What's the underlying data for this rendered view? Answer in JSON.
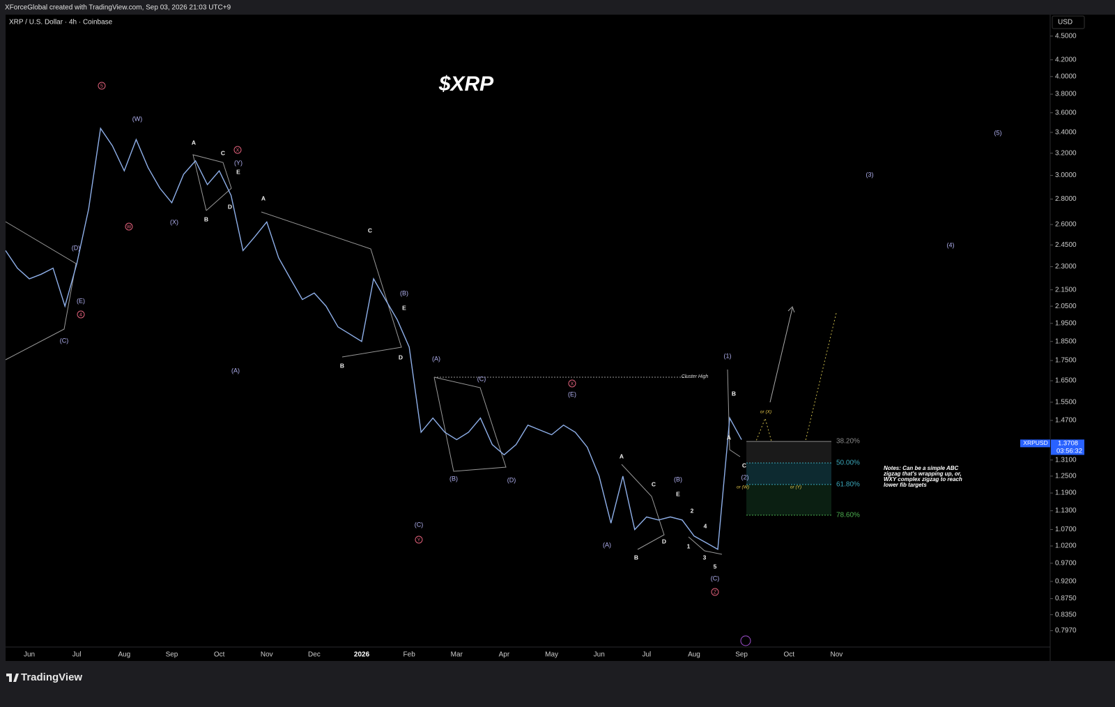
{
  "header": {
    "credit": "XForceGlobal created with TradingView.com, Sep 03, 2026 21:03 UTC+9",
    "brand": "TradingView"
  },
  "chart_data": {
    "type": "line",
    "symbol": "XRP / U.S. Dollar · 4h · Coinbase",
    "title": "$XRP",
    "currency": "USD",
    "log_scale": true,
    "categories": [
      null,
      null,
      "Jun",
      null,
      null,
      null,
      "Jul",
      null,
      null,
      null,
      "Aug",
      null,
      null,
      null,
      "Sep",
      null,
      null,
      null,
      "Oct",
      null,
      null,
      null,
      "Nov",
      null,
      null,
      null,
      "Dec",
      null,
      null,
      null,
      "2026",
      null,
      null,
      null,
      "Feb",
      null,
      null,
      null,
      "Mar",
      null,
      null,
      null,
      "Apr",
      null,
      null,
      null,
      "May",
      null,
      null,
      null,
      "Jun",
      null,
      null,
      null,
      "Jul",
      null,
      null,
      null,
      "Aug",
      null,
      null,
      null,
      "Sep",
      null,
      null,
      null,
      "Oct",
      null,
      null,
      null,
      "Nov",
      null,
      null,
      null,
      null,
      null,
      null,
      null,
      null,
      null,
      null,
      null,
      null,
      null,
      null,
      null,
      null,
      null
    ],
    "series": [
      {
        "name": "XRPUSD",
        "color": "#8fb0ea",
        "values": [
          2.41,
          2.29,
          2.22,
          2.25,
          2.29,
          2.05,
          2.32,
          2.72,
          3.44,
          3.27,
          3.04,
          3.33,
          3.07,
          2.89,
          2.77,
          3.01,
          3.13,
          2.92,
          3.04,
          2.83,
          2.41,
          2.51,
          2.62,
          2.36,
          2.22,
          2.09,
          2.13,
          2.05,
          1.93,
          1.89,
          1.85,
          2.22,
          2.09,
          1.97,
          1.82,
          1.42,
          1.48,
          1.42,
          1.39,
          1.42,
          1.48,
          1.37,
          1.33,
          1.37,
          1.45,
          1.43,
          1.41,
          1.45,
          1.42,
          1.36,
          1.25,
          1.09,
          1.25,
          1.07,
          1.11,
          1.1,
          1.11,
          1.1,
          1.05,
          1.03,
          1.01,
          1.48,
          1.39,
          null,
          null,
          null,
          null,
          null,
          null,
          null,
          null,
          null,
          null,
          null,
          null,
          null,
          null,
          null,
          null,
          null,
          null,
          null,
          null,
          null,
          null,
          null,
          null,
          null
        ]
      }
    ],
    "last_price": 1.3708,
    "countdown": "03:56:32",
    "ylim": [
      0.76,
      4.79
    ],
    "yticks": [
      {
        "value": 4.5,
        "label": "4.5000"
      },
      {
        "value": 4.2,
        "label": "4.2000"
      },
      {
        "value": 4,
        "label": "4.0000"
      },
      {
        "value": 3.8,
        "label": "3.8000"
      },
      {
        "value": 3.6,
        "label": "3.6000"
      },
      {
        "value": 3.4,
        "label": "3.4000"
      },
      {
        "value": 3.2,
        "label": "3.2000"
      },
      {
        "value": 3,
        "label": "3.0000"
      },
      {
        "value": 2.8,
        "label": "2.8000"
      },
      {
        "value": 2.6,
        "label": "2.6000"
      },
      {
        "value": 2.45,
        "label": "2.4500"
      },
      {
        "value": 2.3,
        "label": "2.3000"
      },
      {
        "value": 2.15,
        "label": "2.1500"
      },
      {
        "value": 2.05,
        "label": "2.0500"
      },
      {
        "value": 1.95,
        "label": "1.9500"
      },
      {
        "value": 1.85,
        "label": "1.8500"
      },
      {
        "value": 1.75,
        "label": "1.7500"
      },
      {
        "value": 1.65,
        "label": "1.6500"
      },
      {
        "value": 1.55,
        "label": "1.5500"
      },
      {
        "value": 1.47,
        "label": "1.4700"
      },
      {
        "value": 1.31,
        "label": "1.3100"
      },
      {
        "value": 1.25,
        "label": "1.2500"
      },
      {
        "value": 1.19,
        "label": "1.1900"
      },
      {
        "value": 1.13,
        "label": "1.1300"
      },
      {
        "value": 1.07,
        "label": "1.0700"
      },
      {
        "value": 1.02,
        "label": "1.0200"
      },
      {
        "value": 0.97,
        "label": "0.9700"
      },
      {
        "value": 0.92,
        "label": "0.9200"
      },
      {
        "value": 0.875,
        "label": "0.8750"
      },
      {
        "value": 0.835,
        "label": "0.8350"
      },
      {
        "value": 0.797,
        "label": "0.7970"
      }
    ],
    "fib_levels": [
      {
        "value": 38.2,
        "label": "38.20%"
      },
      {
        "value": 50,
        "label": "50.00%"
      },
      {
        "value": 61.8,
        "label": "61.80%"
      },
      {
        "value": 78.6,
        "label": "78.60%"
      }
    ],
    "cycle_labels": [
      "5",
      "W",
      "X",
      "4",
      "Y",
      "X",
      "Z"
    ],
    "wave_labels": [
      "(W)",
      "(X)",
      "(Y)",
      "(D)",
      "(E)",
      "(C)",
      "(A)",
      "(B)",
      "(A)",
      "(C)",
      "(B)",
      "(D)",
      "(C)",
      "(E)",
      "(A)",
      "(B)",
      "(C)",
      "(1)",
      "(2)",
      "(3)",
      "(4)",
      "(5)"
    ],
    "sub_labels": [
      "A",
      "C",
      "E",
      "B",
      "D",
      "A",
      "C",
      "E",
      "B",
      "D",
      "A",
      "C",
      "E",
      "B",
      "D",
      "2",
      "4",
      "1",
      "3",
      "5",
      "B",
      "A",
      "C"
    ],
    "alt_labels": [
      "or (X)",
      "or (W)",
      "or (Y)"
    ],
    "cluster_label": "Cluster High",
    "notes": "Notes: Can be a simple ABC zigzag that's wrapping up, or, WXY complex zigzag to reach lower fib targets"
  }
}
